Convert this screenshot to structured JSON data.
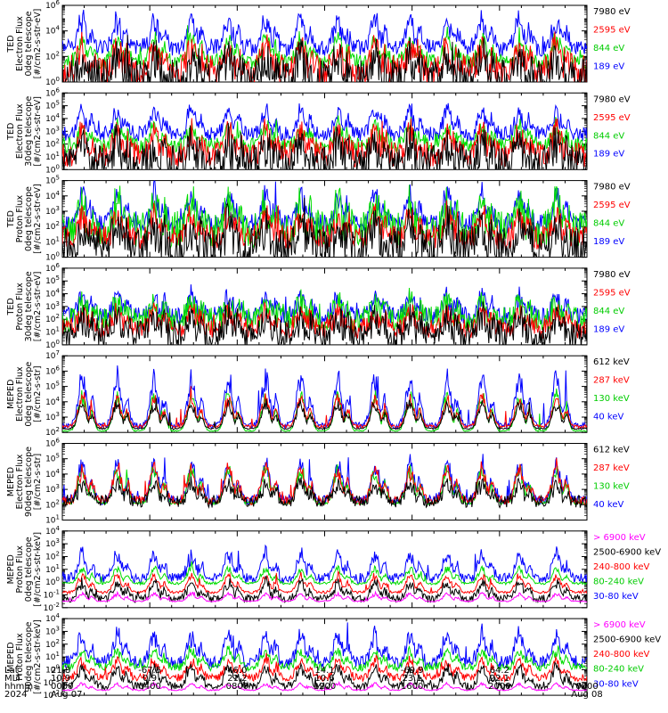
{
  "chart_data": [
    {
      "type": "line",
      "ylabel": [
        "TED",
        "Electron Flux",
        "0deg telescope",
        "[#/cm2-s-str-eV]"
      ],
      "yscale": "log",
      "ylim_exp": [
        0,
        6
      ],
      "tick_exps": [
        0,
        2,
        4,
        6
      ],
      "series": [
        {
          "name": "7980 eV",
          "color": "#000000",
          "base": 0.2,
          "spread": 1.6,
          "peak": 2.2
        },
        {
          "name": "2595 eV",
          "color": "#ff0000",
          "base": 0.9,
          "spread": 1.2,
          "peak": 3.1
        },
        {
          "name": "844 eV",
          "color": "#00dd00",
          "base": 1.6,
          "spread": 0.6,
          "peak": 3.8
        },
        {
          "name": "189 eV",
          "color": "#0000ff",
          "base": 2.7,
          "spread": 0.7,
          "peak": 5.3
        }
      ]
    },
    {
      "type": "line",
      "ylabel": [
        "TED",
        "Electron Flux",
        "30deg telescope",
        "[#/cm2-s-str-eV]"
      ],
      "yscale": "log",
      "ylim_exp": [
        0,
        6
      ],
      "tick_exps": [
        0,
        1,
        2,
        3,
        4,
        5,
        6
      ],
      "series": [
        {
          "name": "7980 eV",
          "color": "#000000",
          "base": 0.4,
          "spread": 1.5,
          "peak": 2.4
        },
        {
          "name": "2595 eV",
          "color": "#ff0000",
          "base": 1.2,
          "spread": 1.0,
          "peak": 3.3
        },
        {
          "name": "844 eV",
          "color": "#00dd00",
          "base": 1.9,
          "spread": 0.6,
          "peak": 3.8
        },
        {
          "name": "189 eV",
          "color": "#0000ff",
          "base": 2.8,
          "spread": 0.6,
          "peak": 5.0
        }
      ]
    },
    {
      "type": "line",
      "ylabel": [
        "TED",
        "Proton Flux",
        "0deg telescope",
        "[#/cm2-s-str-eV]"
      ],
      "yscale": "log",
      "ylim_exp": [
        0,
        5
      ],
      "tick_exps": [
        0,
        1,
        2,
        3,
        4,
        5
      ],
      "series": [
        {
          "name": "7980 eV",
          "color": "#000000",
          "base": 0.6,
          "spread": 1.4,
          "peak": 2.4
        },
        {
          "name": "2595 eV",
          "color": "#ff0000",
          "base": 1.3,
          "spread": 0.8,
          "peak": 3.0
        },
        {
          "name": "844 eV",
          "color": "#00dd00",
          "base": 1.8,
          "spread": 1.2,
          "peak": 3.8
        },
        {
          "name": "189 eV",
          "color": "#0000ff",
          "base": 2.2,
          "spread": 0.6,
          "peak": 4.4
        }
      ]
    },
    {
      "type": "line",
      "ylabel": [
        "TED",
        "Proton Flux",
        "30deg telescope",
        "[#/cm2-s-str-eV]"
      ],
      "yscale": "log",
      "ylim_exp": [
        0,
        6
      ],
      "tick_exps": [
        0,
        1,
        2,
        3,
        4,
        5,
        6
      ],
      "series": [
        {
          "name": "7980 eV",
          "color": "#000000",
          "base": 0.8,
          "spread": 1.2,
          "peak": 2.4
        },
        {
          "name": "2595 eV",
          "color": "#ff0000",
          "base": 1.3,
          "spread": 0.8,
          "peak": 2.9
        },
        {
          "name": "844 eV",
          "color": "#00dd00",
          "base": 2.0,
          "spread": 1.0,
          "peak": 3.6
        },
        {
          "name": "189 eV",
          "color": "#0000ff",
          "base": 2.3,
          "spread": 0.7,
          "peak": 4.1
        }
      ]
    },
    {
      "type": "line",
      "ylabel": [
        "MEPED",
        "Electron Flux",
        "0deg telescope",
        "[#/cm2-s-str]"
      ],
      "yscale": "log",
      "ylim_exp": [
        2,
        7
      ],
      "tick_exps": [
        2,
        3,
        4,
        5,
        6,
        7
      ],
      "series": [
        {
          "name": "612 keV",
          "color": "#000000",
          "base": 2.25,
          "spread": 0.05,
          "peak": 4.2
        },
        {
          "name": "287 keV",
          "color": "#ff0000",
          "base": 2.4,
          "spread": 0.1,
          "peak": 4.6
        },
        {
          "name": "130 keV",
          "color": "#00dd00",
          "base": 2.1,
          "spread": 0.04,
          "peak": 4.9
        },
        {
          "name": "40 keV",
          "color": "#0000ff",
          "base": 2.45,
          "spread": 0.2,
          "peak": 6.2
        }
      ]
    },
    {
      "type": "line",
      "ylabel": [
        "MEPED",
        "Electron Flux",
        "90deg telescope",
        "[#/cm2-s-str]"
      ],
      "yscale": "log",
      "ylim_exp": [
        1,
        6
      ],
      "tick_exps": [
        1,
        2,
        3,
        4,
        5,
        6
      ],
      "series": [
        {
          "name": "612 keV",
          "color": "#000000",
          "base": 2.2,
          "spread": 0.4,
          "peak": 3.6
        },
        {
          "name": "287 keV",
          "color": "#ff0000",
          "base": 2.3,
          "spread": 0.3,
          "peak": 4.8
        },
        {
          "name": "130 keV",
          "color": "#00dd00",
          "base": 2.1,
          "spread": 0.1,
          "peak": 4.8
        },
        {
          "name": "40 keV",
          "color": "#0000ff",
          "base": 2.3,
          "spread": 0.3,
          "peak": 5.2
        }
      ]
    },
    {
      "type": "line",
      "ylabel": [
        "MEPED",
        "Proton Flux",
        "0deg telescope",
        "[#/cm2-s-str-keV]"
      ],
      "yscale": "log",
      "ylim_exp": [
        -2,
        4
      ],
      "tick_exps": [
        -2,
        -1,
        0,
        1,
        2,
        3,
        4
      ],
      "series": [
        {
          "name": "> 6900 keV",
          "color": "#ff00ff",
          "base": -1.5,
          "spread": 0.05,
          "peak": -0.8
        },
        {
          "name": "2500-6900 keV",
          "color": "#000000",
          "base": -1.3,
          "spread": 0.3,
          "peak": 0.2
        },
        {
          "name": "240-800 keV",
          "color": "#ff0000",
          "base": -0.8,
          "spread": 0.1,
          "peak": 0.8
        },
        {
          "name": "80-240 keV",
          "color": "#00dd00",
          "base": -0.1,
          "spread": 0.1,
          "peak": 1.3
        },
        {
          "name": "30-80 keV",
          "color": "#0000ff",
          "base": 0.3,
          "spread": 0.4,
          "peak": 2.6
        }
      ]
    },
    {
      "type": "line",
      "ylabel": [
        "MEPED",
        "Proton Flux",
        "90deg telescope",
        "[#/cm2-s-str-keV]"
      ],
      "yscale": "log",
      "ylim_exp": [
        -2,
        4
      ],
      "tick_exps": [
        -2,
        -1,
        0,
        1,
        2,
        3,
        4
      ],
      "series": [
        {
          "name": "> 6900 keV",
          "color": "#ff00ff",
          "base": -1.6,
          "spread": 0.05,
          "peak": -1.0
        },
        {
          "name": "2500-6900 keV",
          "color": "#000000",
          "base": -1.3,
          "spread": 0.3,
          "peak": 0.5
        },
        {
          "name": "240-800 keV",
          "color": "#ff0000",
          "base": -0.6,
          "spread": 0.3,
          "peak": 1.0
        },
        {
          "name": "80-240 keV",
          "color": "#00dd00",
          "base": 0.2,
          "spread": 0.3,
          "peak": 1.8
        },
        {
          "name": "30-80 keV",
          "color": "#0000ff",
          "base": 0.6,
          "spread": 0.5,
          "peak": 3.2
        }
      ]
    }
  ],
  "orbit_peaks_hours": [
    0.9,
    2.5,
    4.2,
    5.9,
    7.6,
    9.3,
    10.9,
    12.6,
    14.3,
    15.9,
    17.6,
    19.2,
    20.9,
    22.6
  ],
  "footer": {
    "row_labels": [
      "Lat",
      "MLT",
      "hhmm",
      "2024"
    ],
    "columns": [
      {
        "hour": 0,
        "lat": "21.8",
        "mlt": "10.9",
        "hhmm": "0000",
        "date": "Aug 07"
      },
      {
        "hour": 4,
        "lat": "-67.5",
        "mlt": "0.9",
        "hhmm": "0400",
        "date": ""
      },
      {
        "hour": 8,
        "lat": "46.0",
        "mlt": "21.2",
        "hhmm": "0800",
        "date": ""
      },
      {
        "hour": 12,
        "lat": "14.1",
        "mlt": "10.6",
        "hhmm": "1200",
        "date": ""
      },
      {
        "hour": 16,
        "lat": "-69.9",
        "mlt": "23.1",
        "hhmm": "1600",
        "date": ""
      },
      {
        "hour": 20,
        "lat": "64.2",
        "mlt": "22.1",
        "hhmm": "2000",
        "date": ""
      },
      {
        "hour": 24,
        "lat": "",
        "mlt": "",
        "hhmm": "0000",
        "date": "Aug 08"
      }
    ]
  }
}
